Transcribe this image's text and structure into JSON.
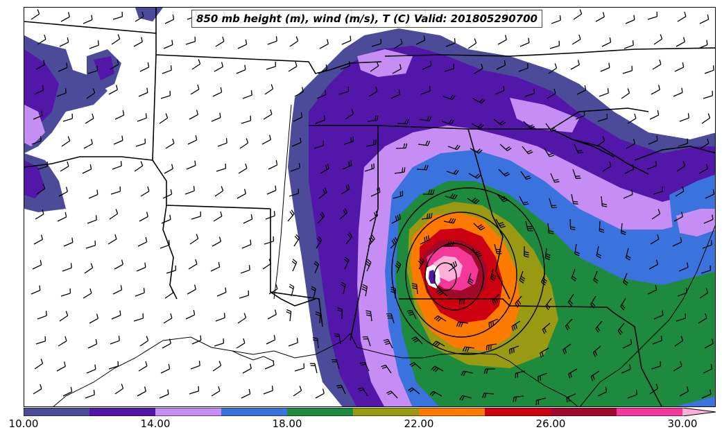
{
  "title": "850 mb height (m), wind (m/s), T (C) Valid: 201805290700",
  "colorbar": {
    "min": 10.0,
    "max": 31.0,
    "step": 2.0,
    "colors": [
      "#4b4b9a",
      "#5216a8",
      "#c68ef5",
      "#3a73dd",
      "#1e8a3e",
      "#9a9a12",
      "#ff7a00",
      "#cc0010",
      "#a00a2a",
      "#f4389a",
      "#ffb0d8"
    ],
    "extend": "max",
    "tick_labels": [
      "10.00",
      "14.00",
      "18.00",
      "22.00",
      "26.00",
      "30.00"
    ],
    "tick_values": [
      10,
      14,
      18,
      22,
      26,
      30
    ]
  },
  "colors": {
    "border": "#000000",
    "water": "#ffffff",
    "land": "#ffffff"
  }
}
